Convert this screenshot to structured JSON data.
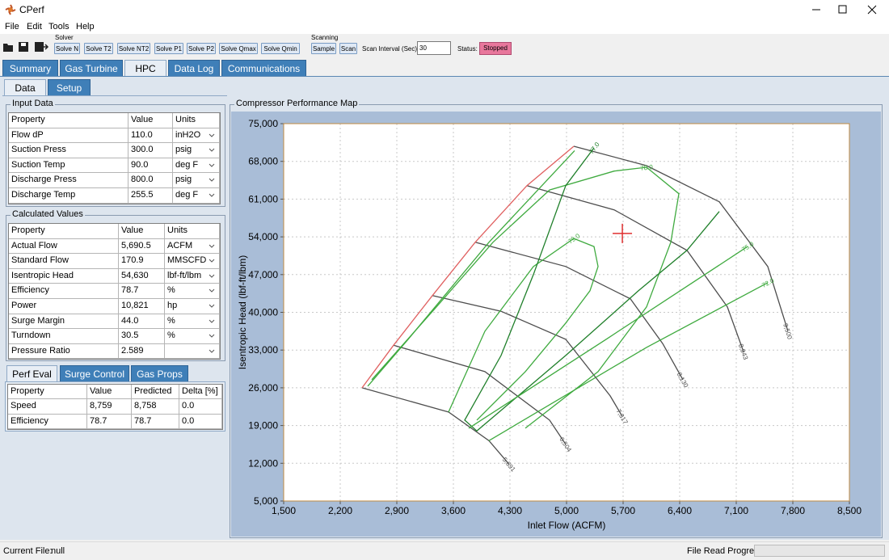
{
  "window": {
    "title": "CPerf",
    "menu": [
      "File",
      "Edit",
      "Tools",
      "Help"
    ]
  },
  "toolbar": {
    "solver_label": "Solver",
    "solver_buttons": [
      "Solve N",
      "Solve T2",
      "Solve NT2",
      "Solve P1",
      "Solve P2",
      "Solve Qmax",
      "Solve Qmin"
    ],
    "scanning_label": "Scanning",
    "scan_buttons": [
      "Sample",
      "Scan"
    ],
    "scan_interval_label": "Scan Interval (Sec):",
    "scan_interval": "30",
    "status_label": "Status:",
    "status": "Stopped"
  },
  "tabs": [
    "Summary",
    "Gas Turbine",
    "HPC",
    "Data Log",
    "Communications"
  ],
  "sub_tabs": [
    "Data",
    "Setup"
  ],
  "input_data": {
    "title": "Input Data",
    "columns": [
      "Property",
      "Value",
      "Units"
    ],
    "rows": [
      [
        "Flow dP",
        "110.0",
        "inH2O"
      ],
      [
        "Suction Press",
        "300.0",
        "psig"
      ],
      [
        "Suction Temp",
        "90.0",
        "deg F"
      ],
      [
        "Discharge Press",
        "800.0",
        "psig"
      ],
      [
        "Discharge Temp",
        "255.5",
        "deg F"
      ]
    ]
  },
  "calculated_values": {
    "title": "Calculated Values",
    "columns": [
      "Property",
      "Value",
      "Units"
    ],
    "rows": [
      [
        "Actual Flow",
        "5,690.5",
        "ACFM"
      ],
      [
        "Standard Flow",
        "170.9",
        "MMSCFD"
      ],
      [
        "Isentropic  Head",
        "54,630",
        "lbf-ft/lbm"
      ],
      [
        "Efficiency",
        "78.7",
        "%"
      ],
      [
        "Power",
        "10,821",
        "hp"
      ],
      [
        "Surge Margin",
        "44.0",
        "%"
      ],
      [
        "Turndown",
        "30.5",
        "%"
      ],
      [
        "Pressure Ratio",
        "2.589"
      ]
    ]
  },
  "perf_tabs": [
    "Perf Eval",
    "Surge Control",
    "Gas Props"
  ],
  "perf_eval": {
    "columns": [
      "Property",
      "Value",
      "Predicted",
      "Delta [%]"
    ],
    "rows": [
      [
        "Speed",
        "8,759",
        "8,758",
        "0.0"
      ],
      [
        "Efficiency",
        "78.7",
        "78.7",
        "0.0"
      ]
    ]
  },
  "chart_data": {
    "type": "line",
    "title": "Compressor Performance Map",
    "x_label": "Inlet Flow (ACFM)",
    "y_label": "Isentropic  Head (lbf-ft/lbm)",
    "xlim": [
      1500,
      8500
    ],
    "ylim": [
      5000,
      75000
    ],
    "xticks": [
      {
        "value": 1500,
        "label": "1,500"
      },
      {
        "value": 2200,
        "label": "2,200"
      },
      {
        "value": 2900,
        "label": "2,900"
      },
      {
        "value": 3600,
        "label": "3,600"
      },
      {
        "value": 4300,
        "label": "4,300"
      },
      {
        "value": 5000,
        "label": "5,000"
      },
      {
        "value": 5700,
        "label": "5,700"
      },
      {
        "value": 6400,
        "label": "6,400"
      },
      {
        "value": 7100,
        "label": "7,100"
      },
      {
        "value": 7800,
        "label": "7,800"
      },
      {
        "value": 8500,
        "label": "8,500"
      }
    ],
    "yticks": [
      {
        "value": 5000,
        "label": "5,000"
      },
      {
        "value": 12000,
        "label": "12,000"
      },
      {
        "value": 19000,
        "label": "19,000"
      },
      {
        "value": 26000,
        "label": "26,000"
      },
      {
        "value": 33000,
        "label": "33,000"
      },
      {
        "value": 40000,
        "label": "40,000"
      },
      {
        "value": 47000,
        "label": "47,000"
      },
      {
        "value": 54000,
        "label": "54,000"
      },
      {
        "value": 61000,
        "label": "61,000"
      },
      {
        "value": 68000,
        "label": "68,000"
      },
      {
        "value": 75000,
        "label": "75,000"
      }
    ],
    "grid": true,
    "series": [
      {
        "name": "5,691",
        "color": "#4d4d4d",
        "label_at": "end",
        "x": [
          2470,
          3540,
          4040,
          4290
        ],
        "values": [
          26000,
          21500,
          16200,
          11800
        ]
      },
      {
        "name": "6,504",
        "color": "#4d4d4d",
        "label_at": "end",
        "x": [
          2860,
          3990,
          4790,
          4990
        ],
        "values": [
          33900,
          29000,
          20000,
          15500
        ]
      },
      {
        "name": "7,317",
        "color": "#4d4d4d",
        "label_at": "end",
        "x": [
          3340,
          4190,
          4990,
          5540,
          5690
        ],
        "values": [
          43100,
          40200,
          35000,
          24500,
          20700
        ]
      },
      {
        "name": "8,130",
        "color": "#4d4d4d",
        "label_at": "end",
        "x": [
          3870,
          4990,
          5790,
          6190,
          6440
        ],
        "values": [
          53000,
          48500,
          42500,
          34200,
          27500
        ]
      },
      {
        "name": "8,943",
        "color": "#4d4d4d",
        "label_at": "end",
        "x": [
          4510,
          5590,
          6490,
          6990,
          7190
        ],
        "values": [
          63500,
          59000,
          51500,
          41000,
          32700
        ]
      },
      {
        "name": "9,500",
        "color": "#4d4d4d",
        "label_at": "end",
        "x": [
          5090,
          5990,
          6890,
          7490,
          7740
        ],
        "values": [
          70800,
          67200,
          60500,
          48500,
          36500
        ]
      },
      {
        "color": "#e06060",
        "x": [
          2470,
          2860,
          3340,
          3870,
          4510,
          5090
        ],
        "values": [
          26000,
          33900,
          43100,
          53000,
          63500,
          70800
        ]
      },
      {
        "name": "79.0",
        "color": "#3faa3f",
        "label_at": "top",
        "x": [
          3540,
          3990,
          4590,
          5090,
          5340,
          5390,
          5290,
          4990,
          4490,
          3890
        ],
        "values": [
          21500,
          36500,
          48500,
          53700,
          52200,
          48500,
          44000,
          38000,
          29000,
          20000
        ]
      },
      {
        "name": "78.0",
        "color": "#3faa3f",
        "label_at": "top",
        "x": [
          2590,
          3390,
          4090,
          4790,
          5590,
          5990,
          6390,
          6290,
          5990,
          5390,
          4490
        ],
        "values": [
          27500,
          41000,
          53000,
          62700,
          66200,
          66900,
          62000,
          53000,
          41000,
          29000,
          18500
        ]
      },
      {
        "name": "77.0",
        "color": "#1f7f2a",
        "label_at": "top",
        "x": [
          5340,
          4990,
          4590,
          4190,
          3740,
          3890,
          4990,
          5890,
          6490,
          6890
        ],
        "values": [
          70500,
          63500,
          47000,
          32000,
          20000,
          18000,
          32000,
          44000,
          51500,
          58700
        ]
      },
      {
        "name": "75.0",
        "color": "#3faa3f",
        "label_at": "end",
        "x": [
          2540,
          3040,
          4040,
          5100,
          null,
          3790,
          5490,
          7240
        ],
        "values": [
          26300,
          35000,
          53000,
          70000,
          null,
          18500,
          35000,
          52200
        ]
      },
      {
        "name": "72.0",
        "color": "#3faa3f",
        "label_at": "end",
        "x": [
          4040,
          5990,
          7490
        ],
        "values": [
          16200,
          33500,
          45500
        ]
      }
    ],
    "operating_point": {
      "x": 5690.5,
      "y": 54630,
      "color": "#e03030"
    }
  },
  "status_bar": {
    "current_file_label": "Current File:",
    "current_file": "null",
    "progress_label": "File Read Progress:"
  }
}
